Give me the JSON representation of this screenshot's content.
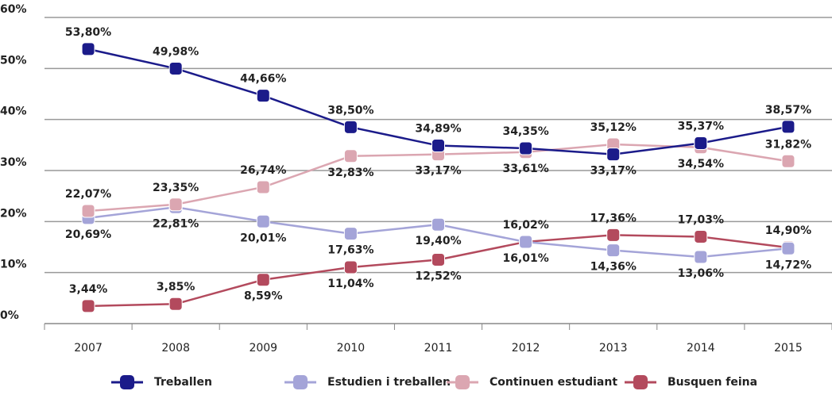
{
  "chart_data": {
    "type": "line",
    "categories": [
      "2007",
      "2008",
      "2009",
      "2010",
      "2011",
      "2012",
      "2013",
      "2014",
      "2015"
    ],
    "series": [
      {
        "name": "Treballen",
        "color": "#1b1b8a",
        "values": [
          53.8,
          49.98,
          44.66,
          38.5,
          34.89,
          34.35,
          33.17,
          35.37,
          38.57
        ],
        "value_labels": [
          "53,80%",
          "49,98%",
          "44,66%",
          "38,50%",
          "34,89%",
          "34,35%",
          "33,17%",
          "35,37%",
          "38,57%"
        ]
      },
      {
        "name": "Estudien i treballen",
        "color": "#a4a4d8",
        "values": [
          20.69,
          22.81,
          20.01,
          17.63,
          19.4,
          16.01,
          14.36,
          13.06,
          14.72
        ],
        "value_labels": [
          "20,69%",
          "22,81%",
          "20,01%",
          "17,63%",
          "19,40%",
          "16,01%",
          "14,36%",
          "13,06%",
          "14,72%"
        ]
      },
      {
        "name": "Continuen estudiant",
        "color": "#dba6b1",
        "values": [
          22.07,
          23.35,
          26.74,
          32.83,
          33.17,
          33.61,
          35.12,
          34.54,
          31.82
        ],
        "value_labels": [
          "22,07%",
          "23,35%",
          "26,74%",
          "32,83%",
          "33,17%",
          "33,61%",
          "35,12%",
          "34,54%",
          "31,82%"
        ]
      },
      {
        "name": "Busquen feina",
        "color": "#b34a5d",
        "values": [
          3.44,
          3.85,
          8.59,
          11.04,
          12.52,
          16.02,
          17.36,
          17.03,
          14.9
        ],
        "value_labels": [
          "3,44%",
          "3,85%",
          "8,59%",
          "11,04%",
          "12,52%",
          "16,02%",
          "17,36%",
          "17,03%",
          "14,90%"
        ]
      }
    ],
    "ylim": [
      0,
      60
    ],
    "yticks": [
      {
        "value": 0,
        "label": "0%"
      },
      {
        "value": 10,
        "label": "10%"
      },
      {
        "value": 20,
        "label": "20%"
      },
      {
        "value": 30,
        "label": "30%"
      },
      {
        "value": 40,
        "label": "40%"
      },
      {
        "value": 50,
        "label": "50%"
      },
      {
        "value": 60,
        "label": "60%"
      }
    ],
    "grid": true,
    "legend": "bottom"
  }
}
